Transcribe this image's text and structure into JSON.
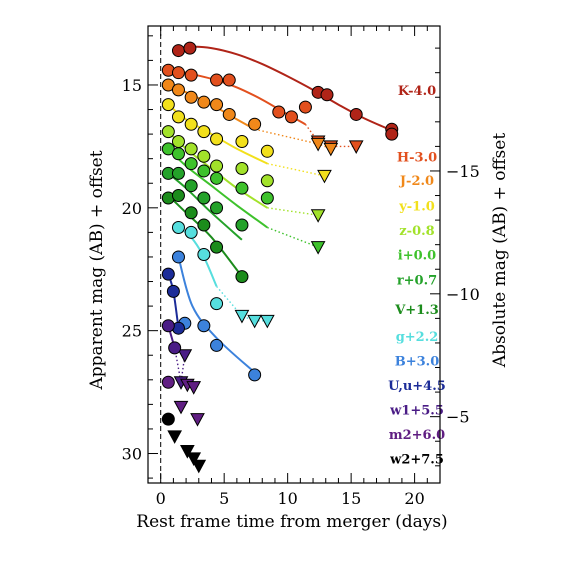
{
  "chart_data": {
    "type": "scatter",
    "title": "",
    "xlabel": "Rest frame time from merger (days)",
    "ylabel": "Apparent mag (AB) + offset",
    "y2label": "Absolute mag (AB) + offset",
    "xlim": [
      -1,
      22
    ],
    "ylim": [
      31.2,
      12.6
    ],
    "xticks": [
      0,
      5,
      10,
      15,
      20
    ],
    "yticks": [
      15,
      20,
      25,
      30
    ],
    "y2ticks": [
      -15,
      -10,
      -5
    ],
    "y2_offset": 33.5,
    "merger_line_x": 0,
    "series": [
      {
        "name": "K-4.0",
        "color": "#b02418",
        "label_y": 15.25,
        "detections": [
          [
            1.4,
            13.6
          ],
          [
            2.3,
            13.5
          ],
          [
            12.4,
            15.3
          ],
          [
            13.1,
            15.4
          ],
          [
            15.4,
            16.2
          ],
          [
            18.2,
            16.8
          ],
          [
            18.2,
            17.0
          ]
        ],
        "upper_limits": [],
        "curve": [
          [
            1.0,
            13.65
          ],
          [
            2.5,
            13.45
          ],
          [
            4,
            13.5
          ],
          [
            6,
            13.75
          ],
          [
            8,
            14.15
          ],
          [
            10,
            14.65
          ],
          [
            12,
            15.2
          ],
          [
            14,
            15.8
          ],
          [
            16,
            16.35
          ],
          [
            18.2,
            16.85
          ]
        ]
      },
      {
        "name": "H-3.0",
        "color": "#e2501e",
        "label_y": 17.95,
        "detections": [
          [
            0.6,
            14.4
          ],
          [
            1.4,
            14.5
          ],
          [
            2.4,
            14.6
          ],
          [
            4.4,
            14.8
          ],
          [
            5.4,
            14.8
          ],
          [
            9.3,
            16.1
          ],
          [
            10.3,
            16.3
          ],
          [
            11.4,
            15.9
          ]
        ],
        "upper_limits": [
          [
            12.4,
            17.3
          ],
          [
            13.4,
            17.5
          ],
          [
            15.4,
            17.5
          ]
        ],
        "curve": [
          [
            0.6,
            14.3
          ],
          [
            2,
            14.5
          ],
          [
            4,
            14.75
          ],
          [
            6,
            15.1
          ],
          [
            8,
            15.6
          ],
          [
            10,
            16.2
          ],
          [
            11.4,
            16.6
          ]
        ]
      },
      {
        "name": "J-2.0",
        "color": "#f0881a",
        "label_y": 18.9,
        "detections": [
          [
            0.6,
            15.0
          ],
          [
            1.4,
            15.2
          ],
          [
            2.4,
            15.5
          ],
          [
            3.4,
            15.7
          ],
          [
            4.4,
            15.8
          ],
          [
            5.4,
            16.2
          ],
          [
            7.4,
            16.6
          ]
        ],
        "upper_limits": [
          [
            12.4,
            17.4
          ],
          [
            13.4,
            17.6
          ]
        ],
        "curve": [
          [
            0.6,
            15.0
          ],
          [
            2,
            15.3
          ],
          [
            4,
            15.8
          ],
          [
            6,
            16.4
          ],
          [
            7.4,
            16.8
          ]
        ]
      },
      {
        "name": "y-1.0",
        "color": "#f2e01c",
        "label_y": 19.95,
        "detections": [
          [
            0.6,
            15.8
          ],
          [
            1.4,
            16.3
          ],
          [
            2.4,
            16.6
          ],
          [
            3.4,
            16.9
          ],
          [
            4.4,
            17.2
          ],
          [
            6.4,
            17.3
          ],
          [
            8.4,
            17.7
          ]
        ],
        "upper_limits": [
          [
            12.9,
            18.7
          ]
        ],
        "curve": [
          [
            0.6,
            15.8
          ],
          [
            2,
            16.4
          ],
          [
            4,
            17.0
          ],
          [
            6,
            17.6
          ],
          [
            8.4,
            18.2
          ]
        ]
      },
      {
        "name": "z-0.8",
        "color": "#a2e22a",
        "label_y": 20.95,
        "detections": [
          [
            0.6,
            16.9
          ],
          [
            1.4,
            17.3
          ],
          [
            2.4,
            17.6
          ],
          [
            3.4,
            17.9
          ],
          [
            4.4,
            18.3
          ],
          [
            6.4,
            18.4
          ],
          [
            8.4,
            18.9
          ]
        ],
        "upper_limits": [
          [
            12.4,
            20.3
          ]
        ],
        "curve": [
          [
            0.6,
            16.9
          ],
          [
            2,
            17.6
          ],
          [
            4,
            18.4
          ],
          [
            6,
            19.2
          ],
          [
            8.4,
            20.0
          ]
        ]
      },
      {
        "name": "i+0.0",
        "color": "#3ec22c",
        "label_y": 21.95,
        "detections": [
          [
            0.6,
            17.6
          ],
          [
            1.4,
            17.8
          ],
          [
            2.4,
            18.2
          ],
          [
            3.4,
            18.5
          ],
          [
            4.4,
            18.8
          ],
          [
            6.4,
            19.2
          ],
          [
            8.4,
            19.6
          ]
        ],
        "upper_limits": [
          [
            12.4,
            21.6
          ]
        ],
        "curve": [
          [
            0.6,
            17.6
          ],
          [
            2,
            18.3
          ],
          [
            4,
            19.1
          ],
          [
            6,
            19.9
          ],
          [
            8.4,
            20.8
          ]
        ]
      },
      {
        "name": "r+0.7",
        "color": "#24a22a",
        "label_y": 22.95,
        "detections": [
          [
            0.6,
            18.6
          ],
          [
            1.4,
            18.6
          ],
          [
            2.4,
            19.1
          ],
          [
            3.4,
            19.6
          ],
          [
            4.4,
            20.0
          ],
          [
            6.4,
            20.7
          ]
        ],
        "upper_limits": [],
        "curve": [
          [
            0.6,
            18.6
          ],
          [
            2,
            19.2
          ],
          [
            4,
            20.2
          ],
          [
            6.4,
            21.3
          ]
        ]
      },
      {
        "name": "V+1.3",
        "color": "#1c8c1c",
        "label_y": 24.15,
        "detections": [
          [
            0.6,
            19.6
          ],
          [
            1.4,
            19.5
          ],
          [
            2.4,
            20.2
          ],
          [
            3.4,
            20.7
          ],
          [
            4.4,
            21.6
          ],
          [
            6.4,
            22.8
          ]
        ],
        "upper_limits": [],
        "curve": [
          [
            0.6,
            19.5
          ],
          [
            2,
            20.2
          ],
          [
            4,
            21.2
          ],
          [
            6.4,
            22.8
          ]
        ]
      },
      {
        "name": "g+2.2",
        "color": "#56dede",
        "label_y": 25.25,
        "detections": [
          [
            1.4,
            20.8
          ],
          [
            2.4,
            21.0
          ],
          [
            3.4,
            21.9
          ],
          [
            4.4,
            23.9
          ]
        ],
        "upper_limits": [
          [
            6.4,
            24.4
          ],
          [
            7.4,
            24.6
          ],
          [
            8.4,
            24.6
          ]
        ],
        "curve": [
          [
            1.4,
            20.8
          ],
          [
            2.4,
            21.2
          ],
          [
            3.4,
            22.0
          ],
          [
            4.4,
            23.2
          ]
        ]
      },
      {
        "name": "B+3.0",
        "color": "#3c82dc",
        "label_y": 26.25,
        "detections": [
          [
            1.4,
            22.0
          ],
          [
            1.9,
            24.7
          ],
          [
            3.4,
            24.8
          ],
          [
            4.4,
            25.6
          ],
          [
            7.4,
            26.8
          ]
        ],
        "upper_limits": [],
        "curve": [
          [
            1.4,
            22.0
          ],
          [
            2.5,
            24.0
          ],
          [
            4.4,
            25.3
          ],
          [
            7.4,
            26.7
          ]
        ]
      },
      {
        "name": "Uu+4.5",
        "display": "U,u+4.5",
        "color": "#1c2c98",
        "label_y": 27.25,
        "detections": [
          [
            0.6,
            22.7
          ],
          [
            1.0,
            23.4
          ],
          [
            1.4,
            24.9
          ]
        ],
        "upper_limits": [],
        "curve": [
          [
            0.6,
            22.7
          ],
          [
            1.0,
            23.4
          ],
          [
            1.4,
            24.9
          ]
        ]
      },
      {
        "name": "w1+5.5",
        "color": "#4a1c86",
        "label_y": 28.25,
        "detections": [
          [
            0.6,
            24.8
          ],
          [
            1.1,
            25.7
          ]
        ],
        "upper_limits": [
          [
            1.9,
            26.0
          ],
          [
            1.6,
            27.1
          ]
        ],
        "curve": [
          [
            0.6,
            24.8
          ],
          [
            1.1,
            25.7
          ]
        ]
      },
      {
        "name": "m2+6.0",
        "color": "#601e82",
        "label_y": 29.25,
        "detections": [
          [
            0.6,
            27.1
          ]
        ],
        "upper_limits": [
          [
            2.1,
            27.2
          ],
          [
            2.6,
            27.3
          ],
          [
            1.6,
            28.1
          ],
          [
            2.9,
            28.6
          ]
        ],
        "curve": []
      },
      {
        "name": "w2+7.5",
        "color": "#000000",
        "label_y": 30.25,
        "detections": [
          [
            0.6,
            28.6
          ]
        ],
        "upper_limits": [
          [
            1.1,
            29.3
          ],
          [
            2.1,
            29.9
          ],
          [
            2.6,
            30.2
          ],
          [
            3.0,
            30.5
          ]
        ],
        "curve": []
      }
    ]
  }
}
